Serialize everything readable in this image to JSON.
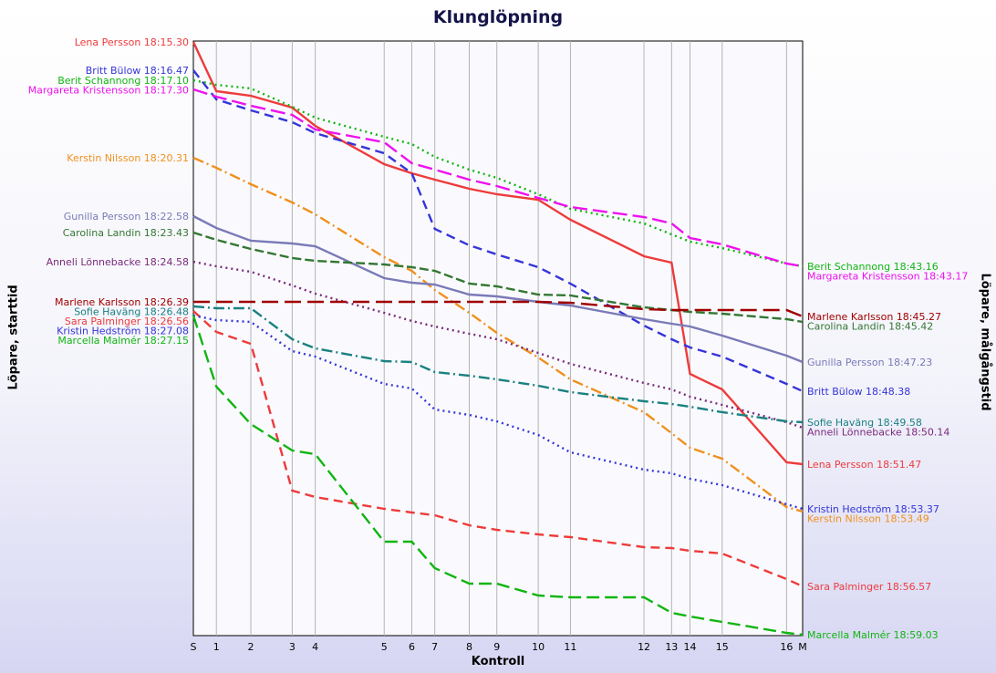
{
  "chart_data": {
    "type": "line",
    "title": "Klunglöpning",
    "xlabel": "Kontroll",
    "ylabel_left": "Löpare, starttid",
    "ylabel_right": "Löpare, målgångstid",
    "x_ticks": [
      "S",
      "1",
      "2",
      "3",
      "4",
      "5",
      "6",
      "7",
      "8",
      "9",
      "10",
      "11",
      "12",
      "13",
      "14",
      "15",
      "16",
      "M"
    ],
    "x_positions": [
      0,
      1,
      2.5,
      4.3,
      5.3,
      8.3,
      9.5,
      10.5,
      12,
      13.2,
      15,
      16.4,
      19.6,
      20.8,
      21.6,
      23,
      25.8,
      26.5
    ],
    "grid": "vertical lines at each control",
    "series": [
      {
        "name": "Lena Persson",
        "start_label": "Lena Persson 18:15.30",
        "end_label": "Lena Persson 18:51.47",
        "color": "#ee3b3b",
        "dash": "",
        "y": [
          46,
          100,
          105,
          118,
          138,
          180,
          190,
          197,
          207,
          213,
          219,
          241,
          281,
          288,
          410,
          427,
          507,
          509
        ]
      },
      {
        "name": "Britt Bülow",
        "start_label": "Britt Bülow 18:16.47",
        "end_label": "Britt Bülow 18:48.38",
        "color": "#3535d8",
        "dash": "10,6",
        "y": [
          77,
          109,
          121,
          134,
          146,
          168,
          190,
          251,
          269,
          279,
          293,
          311,
          357,
          372,
          381,
          391,
          421,
          429
        ]
      },
      {
        "name": "Berit Schannong",
        "start_label": "Berit Schannong 18:17.10",
        "end_label": "Berit Schannong 18:43.16",
        "color": "#11b511",
        "dash": "2,4",
        "y": [
          88,
          93,
          97,
          117,
          129,
          150,
          158,
          172,
          186,
          195,
          213,
          229,
          245,
          257,
          265,
          272,
          289,
          292
        ]
      },
      {
        "name": "Margareta Kristensson",
        "start_label": "Margareta Kristensson 18:17.30",
        "end_label": "Margareta Kristensson 18:43.17",
        "color": "#ee11ee",
        "dash": "16,6",
        "y": [
          98,
          106,
          116,
          126,
          142,
          156,
          179,
          186,
          197,
          204,
          217,
          227,
          238,
          245,
          261,
          268,
          289,
          292
        ]
      },
      {
        "name": "Kerstin Nilsson",
        "start_label": "Kerstin Nilsson 18:20.31",
        "end_label": "Kerstin Nilsson 18:53.49",
        "color": "#f0901e",
        "dash": "12,4,2,4",
        "y": [
          173,
          184,
          202,
          222,
          235,
          282,
          297,
          318,
          343,
          365,
          392,
          416,
          452,
          475,
          491,
          503,
          556,
          561
        ]
      },
      {
        "name": "Gunilla Persson",
        "start_label": "Gunilla Persson 18:22.58",
        "end_label": "Gunilla Persson 18:47.23",
        "color": "#7a7ab8",
        "dash": "",
        "y": [
          237,
          250,
          264,
          267,
          270,
          305,
          310,
          312,
          323,
          325,
          331,
          335,
          350,
          355,
          358,
          368,
          390,
          397
        ]
      },
      {
        "name": "Carolina Landin",
        "start_label": "Carolina Landin 18:23.43",
        "end_label": "Carolina Landin 18:45.42",
        "color": "#337733",
        "dash": "10,4",
        "y": [
          255,
          263,
          273,
          283,
          286,
          290,
          293,
          297,
          311,
          314,
          323,
          324,
          337,
          340,
          342,
          344,
          350,
          353
        ]
      },
      {
        "name": "Anneli Lönnebacke",
        "start_label": "Anneli Lönnebacke 18:24.58",
        "end_label": "Anneli Lönnebacke 18:50.14",
        "color": "#7a2a7a",
        "dash": "2,4",
        "y": [
          287,
          292,
          298,
          313,
          322,
          343,
          352,
          358,
          366,
          372,
          387,
          399,
          420,
          427,
          435,
          444,
          463,
          469
        ]
      },
      {
        "name": "Marlene Karlsson",
        "start_label": "Marlene Karlsson 18:26.39",
        "end_label": "Marlene Karlsson 18:45.27",
        "color": "#a00000",
        "dash": "18,7",
        "y": [
          331,
          331,
          331,
          331,
          331,
          331,
          331,
          331,
          331,
          331,
          331,
          332,
          339,
          340,
          340,
          340,
          340,
          347
        ]
      },
      {
        "name": "Sofie Haväng",
        "start_label": "Sofie Haväng 18:26.48",
        "end_label": "Sofie Haväng 18:49.58",
        "color": "#1a8080",
        "dash": "12,4,2,4",
        "y": [
          336,
          338,
          338,
          372,
          382,
          396,
          397,
          408,
          412,
          416,
          423,
          430,
          440,
          443,
          446,
          452,
          462,
          463
        ]
      },
      {
        "name": "Sara Palminger",
        "start_label": "Sara Palminger 18:26.56",
        "end_label": "Sara Palminger 18:56.57",
        "color": "#ee3b3b",
        "dash": "10,6",
        "y": [
          341,
          364,
          377,
          538,
          545,
          558,
          562,
          565,
          576,
          581,
          586,
          589,
          600,
          601,
          604,
          607,
          635,
          643
        ]
      },
      {
        "name": "Kristin Hedström",
        "start_label": "Kristin Hedström 18:27.08",
        "end_label": "Kristin Hedström 18:53.37",
        "color": "#3535d8",
        "dash": "2,4",
        "y": [
          346,
          351,
          353,
          385,
          391,
          421,
          426,
          449,
          455,
          462,
          477,
          496,
          515,
          519,
          525,
          532,
          553,
          558
        ]
      },
      {
        "name": "Marcella Malmér",
        "start_label": "Marcella Malmér 18:27.15",
        "end_label": "Marcella Malmér 18:59.03",
        "color": "#11b511",
        "dash": "14,6",
        "y": [
          346,
          424,
          465,
          494,
          498,
          594,
          594,
          623,
          640,
          640,
          653,
          655,
          655,
          672,
          676,
          682,
          694,
          696
        ]
      }
    ]
  }
}
